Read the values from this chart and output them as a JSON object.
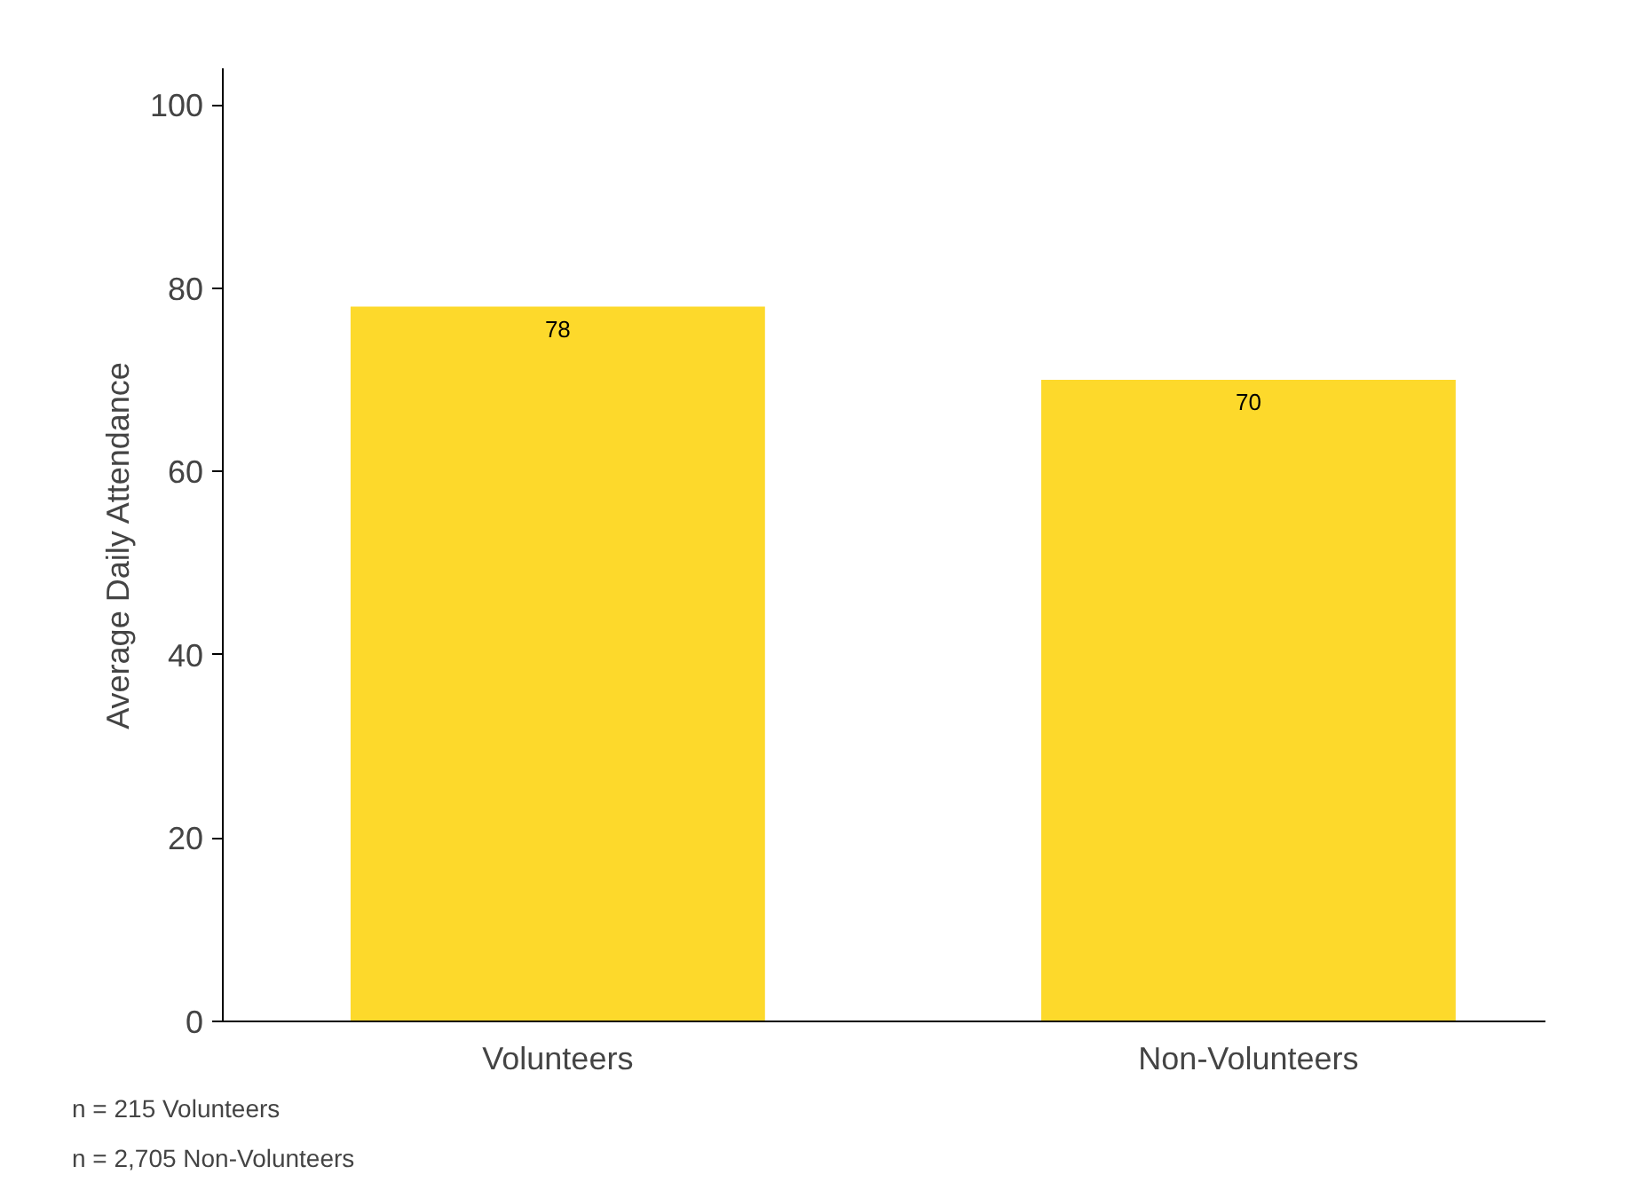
{
  "chart_data": {
    "type": "bar",
    "ylabel": "Average Daily Attendance",
    "categories": [
      "Volunteers",
      "Non-Volunteers"
    ],
    "values": [
      78,
      70
    ],
    "color": "#fdd92b",
    "ylim": [
      0,
      104
    ],
    "yticks": [
      0,
      20,
      40,
      60,
      80,
      100
    ],
    "grid": false,
    "data_labels": true,
    "annotations": [
      "n = 215 Volunteers",
      "n = 2,705 Non-Volunteers"
    ]
  }
}
